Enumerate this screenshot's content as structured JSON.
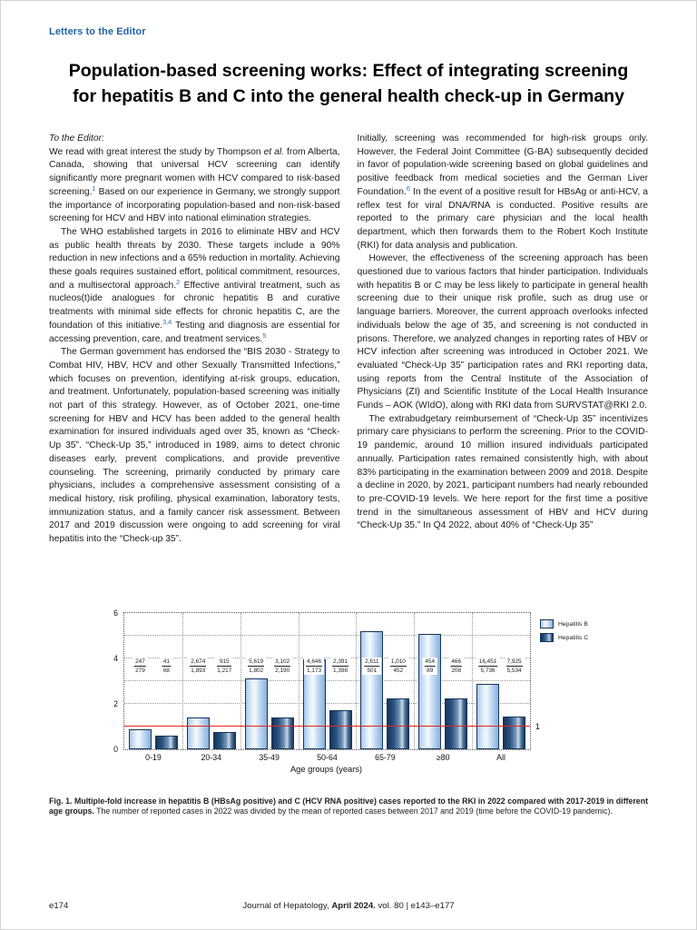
{
  "page": {
    "section_label": "Letters to the Editor",
    "title": "Population-based screening works: Effect of integrating screening for hepatitis B and C into the general health check-up in Germany",
    "footer": {
      "page_number": "e174",
      "center_pre": "Journal of Hepatology, ",
      "center_bold": "April 2024.",
      "center_post": " vol. 80 | e143–e177"
    }
  },
  "article": {
    "left_column": [
      {
        "italic": true,
        "indent": false,
        "segments": [
          "To the Editor:"
        ]
      },
      {
        "indent": false,
        "segments": [
          "We read with great interest the study by Thompson ",
          {
            "i": "et al."
          },
          " from Alberta, Canada, showing that universal HCV screening can identify significantly more pregnant women with HCV compared to risk-based screening.",
          {
            "sup": "1"
          },
          " Based on our experience in Germany, we strongly support the importance of incorporating population-based and non-risk-based screening for HCV and HBV into national elimination strategies."
        ]
      },
      {
        "indent": true,
        "segments": [
          "The WHO established targets in 2016 to eliminate HBV and HCV as public health threats by 2030. These targets include a 90% reduction in new infections and a 65% reduction in mortality. Achieving these goals requires sustained effort, political commitment, resources, and a multisectoral approach.",
          {
            "sup": "2"
          },
          " Effective antiviral treatment, such as nucleos(t)ide analogues for chronic hepatitis B and curative treatments with minimal side effects for chronic hepatitis C, are the foundation of this initiative.",
          {
            "sup": "3,4"
          },
          " Testing and diagnosis are essential for accessing prevention, care, and treatment services.",
          {
            "sup": "5"
          }
        ]
      },
      {
        "indent": true,
        "segments": [
          "The German government has endorsed the “BIS 2030 - Strategy to Combat HIV, HBV, HCV and other Sexually Transmitted Infections,” which focuses on prevention, identifying at-risk groups, education, and treatment. Unfortunately, population-based screening was initially not part of this strategy. However, as of October 2021, one-time screening for HBV and HCV has been added to the general health examination for insured individuals aged over 35, known as “Check-Up 35”. “Check-Up 35,” introduced in 1989, aims to detect chronic diseases early, prevent complications, and provide preventive counseling. The screening, primarily conducted by primary care physicians, includes a comprehensive assessment consisting of a medical history, risk profiling, physical examination, laboratory tests, immunization status, and a family cancer risk assessment. Between 2017 and 2019 discussion were ongoing to add screening for viral hepatitis into the “Check-up 35”."
        ]
      }
    ],
    "right_column": [
      {
        "indent": false,
        "segments": [
          "Initially, screening was recommended for high-risk groups only. However, the Federal Joint Committee (G-BA) subsequently decided in favor of population-wide screening based on global guidelines and positive feedback from medical societies and the German Liver Foundation.",
          {
            "sup": "6"
          },
          " In the event of a positive result for HBsAg or anti-HCV, a reflex test for viral DNA/RNA is conducted. Positive results are reported to the primary care physician and the local health department, which then forwards them to the Robert Koch Institute (RKI) for data analysis and publication."
        ]
      },
      {
        "indent": true,
        "segments": [
          "However, the effectiveness of the screening approach has been questioned due to various factors that hinder participation. Individuals with hepatitis B or C may be less likely to participate in general health screening due to their unique risk profile, such as drug use or language barriers. Moreover, the current approach overlooks infected individuals below the age of 35, and screening is not conducted in prisons. Therefore, we analyzed changes in reporting rates of HBV or HCV infection after screening was introduced in October 2021. We evaluated “Check-Up 35” participation rates and RKI reporting data, using reports from the Central Institute of the Association of Physicians (ZI) and Scientific Institute of the Local Health Insurance Funds – AOK (WIdO), along with RKI data from SURVSTAT@RKI 2.0."
        ]
      },
      {
        "indent": true,
        "segments": [
          "The extrabudgetary reimbursement of “Check-Up 35” incentivizes primary care physicians to perform the screening. Prior to the COVID-19 pandemic, around 10 million insured individuals participated annually. Participation rates remained consistently high, with about 83% participating in the examination between 2009 and 2018. Despite a decline in 2020, by 2021, participant numbers had nearly rebounded to pre-COVID-19 levels. We here report for the first time a positive trend in the simultaneous assessment of HBV and HCV during “Check-Up 35.” In Q4 2022, about 40% of “Check-Up 35”"
        ]
      }
    ]
  },
  "figure": {
    "caption_bold": "Fig. 1. Multiple-fold increase in hepatitis B (HBsAg positive) and C (HCV RNA positive) cases reported to the RKI in 2022 compared with 2017-2019 in different age groups.",
    "caption_rest": " The number of reported cases in 2022 was divided by the mean of reported cases between 2017 and 2019 (time before the COVID-19 pandemic)."
  },
  "chart_data": {
    "type": "bar",
    "title": "",
    "xlabel": "Age groups (years)",
    "ylabel": "",
    "ylim": [
      0,
      6
    ],
    "yticks": [
      0,
      2,
      4,
      6
    ],
    "grid": true,
    "legend_position": "top-right",
    "categories": [
      "0-19",
      "20-34",
      "35-49",
      "50-64",
      "65-79",
      "≥80",
      "All"
    ],
    "series": [
      {
        "name": "Hepatitis B",
        "values": [
          0.89,
          1.41,
          3.12,
          3.96,
          5.21,
          5.1,
          2.87
        ],
        "fractions": [
          {
            "num": "247",
            "den": "279"
          },
          {
            "num": "2,674",
            "den": "1,893"
          },
          {
            "num": "5,619",
            "den": "1,802"
          },
          {
            "num": "4,646",
            "den": "1,173"
          },
          {
            "num": "2,611",
            "den": "501"
          },
          {
            "num": "454",
            "den": "89"
          },
          {
            "num": "16,451",
            "den": "5,736"
          }
        ]
      },
      {
        "name": "Hepatitis C",
        "values": [
          0.6,
          0.75,
          1.42,
          1.71,
          2.23,
          2.24,
          1.43
        ],
        "fractions": [
          {
            "num": "41",
            "den": "68"
          },
          {
            "num": "915",
            "den": "1,217"
          },
          {
            "num": "3,102",
            "den": "2,190"
          },
          {
            "num": "2,391",
            "den": "1,398"
          },
          {
            "num": "1,010",
            "den": "452"
          },
          {
            "num": "466",
            "den": "208"
          },
          {
            "num": "7,925",
            "den": "5,534"
          }
        ]
      }
    ],
    "reference_line": {
      "y": 1,
      "label": "1",
      "color": "#e8231f"
    }
  },
  "colors": {
    "accent_blue": "#2062a8",
    "reference_red": "#e8231f",
    "hepatitis_b_bar": "#bcd5f0",
    "hepatitis_c_bar": "#2a537f",
    "bar_border": "#14365c"
  }
}
